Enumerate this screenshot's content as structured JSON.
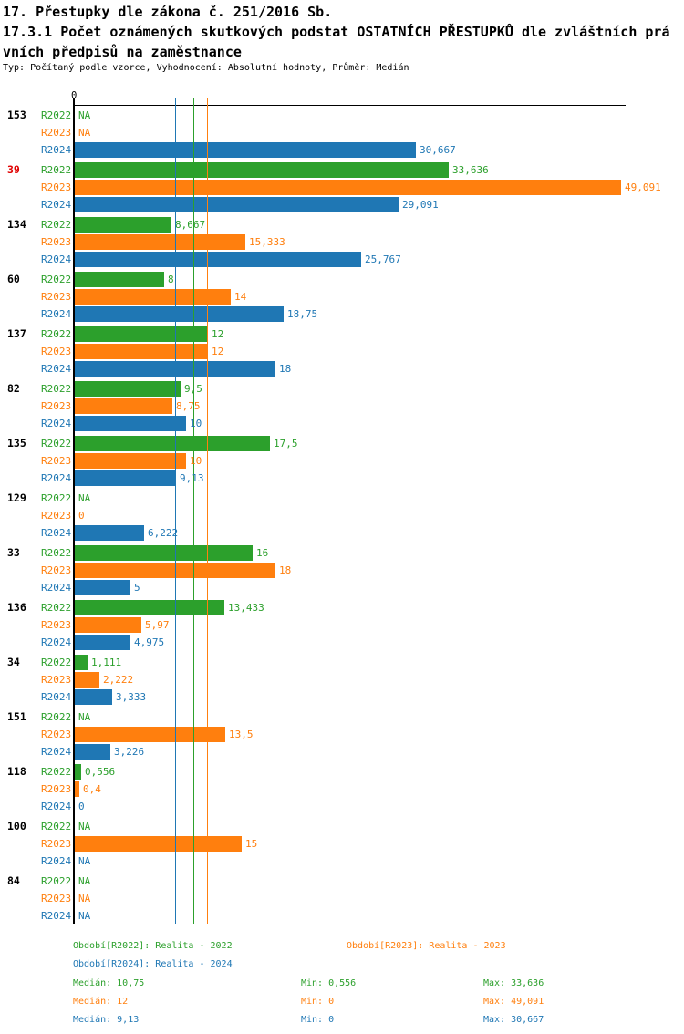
{
  "header": {
    "line1": "17. Přestupky dle zákona č. 251/2016 Sb.",
    "line2": "17.3.1 Počet oznámených skutkových podstat OSTATNÍCH PŘESTUPKŮ dle zvláštních prá",
    "line3": "vních předpisů na zaměstnance",
    "subtitle": "Typ: Počítaný podle vzorce, Vyhodnocení: Absolutní hodnoty, Průměr: Medián"
  },
  "colors": {
    "r2022": "#2CA02C",
    "r2023": "#FF7F0E",
    "r2024": "#1F77B4",
    "highlight_category": "#E00000",
    "axis": "#000000"
  },
  "chart_data": {
    "type": "bar",
    "orientation": "horizontal",
    "zero_tick_label": "0",
    "xlim": [
      0,
      49.5
    ],
    "grid": false,
    "categories": [
      "153",
      "39",
      "134",
      "60",
      "137",
      "82",
      "135",
      "129",
      "33",
      "136",
      "34",
      "151",
      "118",
      "100",
      "84"
    ],
    "highlighted_categories": [
      "39"
    ],
    "na_text": "NA",
    "series": [
      {
        "name": "R2022",
        "color": "#2CA02C",
        "values": [
          null,
          33.636,
          8.667,
          8,
          12,
          9.5,
          17.5,
          null,
          16,
          13.433,
          1.111,
          null,
          0.556,
          null,
          null
        ],
        "labels": [
          "NA",
          "33,636",
          "8,667",
          "8",
          "12",
          "9,5",
          "17,5",
          "NA",
          "16",
          "13,433",
          "1,111",
          "NA",
          "0,556",
          "NA",
          "NA"
        ]
      },
      {
        "name": "R2023",
        "color": "#FF7F0E",
        "values": [
          null,
          49.091,
          15.333,
          14,
          12,
          8.75,
          10,
          0,
          18,
          5.97,
          2.222,
          13.5,
          0.4,
          15,
          null
        ],
        "labels": [
          "NA",
          "49,091",
          "15,333",
          "14",
          "12",
          "8,75",
          "10",
          "0",
          "18",
          "5,97",
          "2,222",
          "13,5",
          "0,4",
          "15",
          "NA"
        ]
      },
      {
        "name": "R2024",
        "color": "#1F77B4",
        "values": [
          30.667,
          29.091,
          25.767,
          18.75,
          18,
          10,
          9.13,
          6.222,
          5,
          4.975,
          3.333,
          3.226,
          0,
          null,
          null
        ],
        "labels": [
          "30,667",
          "29,091",
          "25,767",
          "18,75",
          "18",
          "10",
          "9,13",
          "6,222",
          "5",
          "4,975",
          "3,333",
          "3,226",
          "0",
          "NA",
          "NA"
        ]
      }
    ],
    "medians": [
      {
        "series": "R2022",
        "value": 10.75
      },
      {
        "series": "R2023",
        "value": 12
      },
      {
        "series": "R2024",
        "value": 9.13
      }
    ]
  },
  "legend": [
    {
      "label": "Období[R2022]: Realita - 2022",
      "color": "#2CA02C"
    },
    {
      "label": "Období[R2023]: Realita - 2023",
      "color": "#FF7F0E"
    },
    {
      "label": "Období[R2024]: Realita - 2024",
      "color": "#1F77B4"
    }
  ],
  "stats": [
    {
      "median": "Medián: 10,75",
      "min": "Min: 0,556",
      "max": "Max: 33,636",
      "color": "#2CA02C"
    },
    {
      "median": "Medián: 12",
      "min": "Min: 0",
      "max": "Max: 49,091",
      "color": "#FF7F0E"
    },
    {
      "median": "Medián: 9,13",
      "min": "Min: 0",
      "max": "Max: 30,667",
      "color": "#1F77B4"
    }
  ]
}
